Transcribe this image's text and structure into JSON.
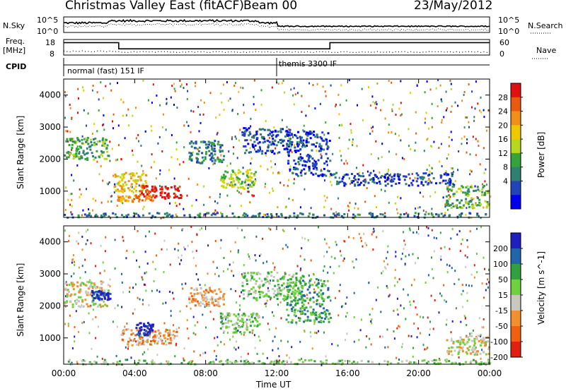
{
  "header": {
    "title": "Christmas Valley East (fitACF)",
    "beam": "Beam 00",
    "date": "23/May/2012"
  },
  "summary": {
    "nsky_label": "N.Sky",
    "nsearch_label": "N.Search",
    "freq_label_line1": "Freq.",
    "freq_label_line2": "[MHz]",
    "nave_label": "Nave",
    "cpid_label": "CPID",
    "noise_ticks": [
      "10^5",
      "10^0"
    ],
    "noise_ticks_right": [
      "10^5",
      "10^0"
    ],
    "freq_ticks": [
      "18",
      "8"
    ],
    "nave_ticks": [
      "60",
      "0"
    ],
    "cpid_segments": [
      {
        "start_hour": 0,
        "end_hour": 12,
        "label": "normal (fast) 151 IF"
      },
      {
        "start_hour": 12,
        "end_hour": 24,
        "label": "themis 3300 IF"
      }
    ],
    "freq_series": {
      "hours": [
        0,
        3.1,
        3.1,
        15.0,
        15.0,
        24
      ],
      "mhz": [
        16,
        16,
        12,
        12,
        16,
        16
      ]
    }
  },
  "chart_data": [
    {
      "type": "heatmap",
      "name": "power",
      "xlabel": "",
      "ylabel": "Slant Range [km]",
      "x_ticks": [
        "00:00",
        "04:00",
        "08:00",
        "12:00",
        "16:00",
        "20:00",
        "00:00"
      ],
      "x_range_hours": [
        0,
        24
      ],
      "y_ticks": [
        1000,
        2000,
        3000,
        4000
      ],
      "y_range_km": [
        180,
        4500
      ],
      "colorbar": {
        "label": "Power [dB]",
        "ticks": [
          "28",
          "24",
          "20",
          "16",
          "12",
          "8",
          "4"
        ],
        "colors": [
          "#0000ee",
          "#2244bb",
          "#2f7f72",
          "#33a33a",
          "#b8d820",
          "#f0c800",
          "#f0901a",
          "#e85a10",
          "#e01010"
        ]
      },
      "regions": [
        {
          "h0": 0.0,
          "h1": 2.5,
          "r0": 2000,
          "r1": 2700,
          "level": 3
        },
        {
          "h0": 2.8,
          "h1": 4.6,
          "r0": 1000,
          "r1": 1600,
          "level": 5
        },
        {
          "h0": 4.2,
          "h1": 6.6,
          "r0": 800,
          "r1": 1200,
          "level": 8
        },
        {
          "h0": 3.0,
          "h1": 5.0,
          "r0": 700,
          "r1": 900,
          "level": 6
        },
        {
          "h0": 7.0,
          "h1": 9.0,
          "r0": 1900,
          "r1": 2600,
          "level": 2
        },
        {
          "h0": 8.8,
          "h1": 10.8,
          "r0": 1100,
          "r1": 1700,
          "level": 4
        },
        {
          "h0": 10.0,
          "h1": 12.8,
          "r0": 2200,
          "r1": 3000,
          "level": 1
        },
        {
          "h0": 12.5,
          "h1": 15.0,
          "r0": 1500,
          "r1": 2900,
          "level": 1
        },
        {
          "h0": 15.0,
          "h1": 22.0,
          "r0": 1200,
          "r1": 1600,
          "level": 1
        },
        {
          "h0": 21.5,
          "h1": 24.0,
          "r0": 500,
          "r1": 1200,
          "level": 3
        },
        {
          "h0": 0.0,
          "h1": 24.0,
          "r0": 200,
          "r1": 350,
          "level": 2
        }
      ]
    },
    {
      "type": "heatmap",
      "name": "velocity",
      "xlabel": "Time UT",
      "ylabel": "Slant Range [km]",
      "x_ticks": [
        "00:00",
        "04:00",
        "08:00",
        "12:00",
        "16:00",
        "20:00",
        "00:00"
      ],
      "x_range_hours": [
        0,
        24
      ],
      "y_ticks": [
        1000,
        2000,
        3000,
        4000
      ],
      "y_range_km": [
        180,
        4500
      ],
      "colorbar": {
        "label": "Velocity [m s^-1]",
        "ticks": [
          "200",
          "100",
          "50",
          "15",
          "-15",
          "-50",
          "-100",
          "-200"
        ],
        "colors": [
          "#2020c0",
          "#2266aa",
          "#30a040",
          "#70d040",
          "#c8c8c0",
          "#f09030",
          "#f06010",
          "#e02010"
        ]
      },
      "regions": [
        {
          "h0": 0.0,
          "h1": 2.5,
          "r0": 2000,
          "r1": 2800,
          "level": 4
        },
        {
          "h0": 1.5,
          "h1": 2.6,
          "r0": 2200,
          "r1": 2500,
          "level": 0
        },
        {
          "h0": 3.2,
          "h1": 6.4,
          "r0": 800,
          "r1": 1300,
          "level": 5
        },
        {
          "h0": 4.0,
          "h1": 5.0,
          "r0": 1100,
          "r1": 1500,
          "level": 0
        },
        {
          "h0": 7.0,
          "h1": 9.0,
          "r0": 2000,
          "r1": 2600,
          "level": 5
        },
        {
          "h0": 8.8,
          "h1": 11.0,
          "r0": 1200,
          "r1": 1800,
          "level": 3
        },
        {
          "h0": 10.0,
          "h1": 13.5,
          "r0": 2200,
          "r1": 3100,
          "level": 3
        },
        {
          "h0": 12.5,
          "h1": 15.0,
          "r0": 1500,
          "r1": 2900,
          "level": 2
        },
        {
          "h0": 21.5,
          "h1": 24.0,
          "r0": 500,
          "r1": 1100,
          "level": 4
        },
        {
          "h0": 0.0,
          "h1": 24.0,
          "r0": 200,
          "r1": 350,
          "level": 3
        }
      ]
    }
  ]
}
